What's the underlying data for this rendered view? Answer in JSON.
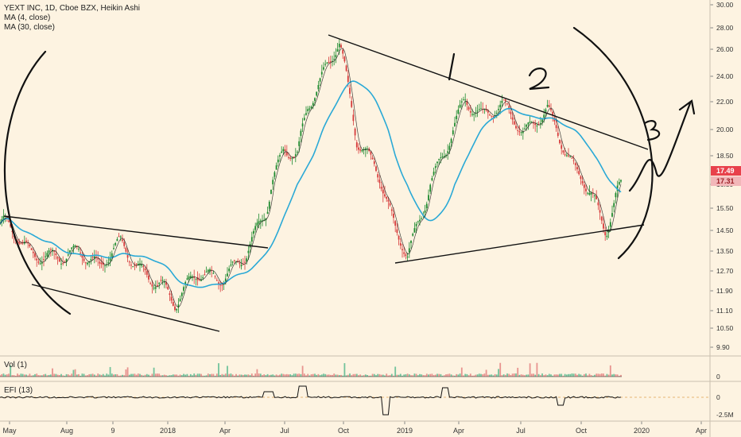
{
  "header": {
    "title": "YEXT INC, 1D, Cboe BZX, Heikin Ashi",
    "ma1": "MA (4, close)",
    "ma2": "MA (30, close)"
  },
  "panes": {
    "volume_label": "Vol (1)",
    "efi_label": "EFI (13)"
  },
  "colors": {
    "background": "#fdf3e1",
    "bull": "#1e8a2e",
    "bear": "#d63b3b",
    "ma_fast": "#111111",
    "ma_slow": "#2aa9d6",
    "price_tag": "#e8414b"
  },
  "chart_data": {
    "type": "candlestick",
    "style": "Heikin Ashi",
    "ylim": [
      9.9,
      30.0
    ],
    "y_ticks": [
      "30.00",
      "28.00",
      "26.00",
      "24.00",
      "22.00",
      "20.00",
      "18.50",
      "16.50",
      "15.50",
      "14.50",
      "13.50",
      "12.70",
      "11.90",
      "11.10",
      "10.50",
      "9.90"
    ],
    "x_ticks": [
      "May",
      "Aug",
      "9",
      "2018",
      "Apr",
      "Jul",
      "Oct",
      "2019",
      "Apr",
      "Jul",
      "Oct",
      "2020",
      "Apr"
    ],
    "price_tags": [
      "17.49",
      "17.31"
    ],
    "volume_ticks": [
      "0"
    ],
    "efi_ticks": [
      "0",
      "-2.5M"
    ],
    "annotations": [
      "1",
      "2",
      "3"
    ],
    "price_path": [
      {
        "x": "2017-05-01",
        "y": 14.8
      },
      {
        "x": "2017-06-10",
        "y": 13.2
      },
      {
        "x": "2017-07-20",
        "y": 13.5
      },
      {
        "x": "2017-08-20",
        "y": 13.6
      },
      {
        "x": "2017-09-20",
        "y": 12.6
      },
      {
        "x": "2017-10-20",
        "y": 13.9
      },
      {
        "x": "2017-11-20",
        "y": 12.9
      },
      {
        "x": "2017-12-20",
        "y": 12.2
      },
      {
        "x": "2018-01-10",
        "y": 11.2
      },
      {
        "x": "2018-02-10",
        "y": 12.5
      },
      {
        "x": "2018-03-20",
        "y": 12.6
      },
      {
        "x": "2018-04-25",
        "y": 13.4
      },
      {
        "x": "2018-05-25",
        "y": 15.2
      },
      {
        "x": "2018-06-20",
        "y": 18.9
      },
      {
        "x": "2018-07-10",
        "y": 18.7
      },
      {
        "x": "2018-07-25",
        "y": 22.0
      },
      {
        "x": "2018-08-15",
        "y": 24.0
      },
      {
        "x": "2018-09-10",
        "y": 26.4
      },
      {
        "x": "2018-10-05",
        "y": 19.2
      },
      {
        "x": "2018-11-01",
        "y": 18.0
      },
      {
        "x": "2018-12-01",
        "y": 14.8
      },
      {
        "x": "2018-12-20",
        "y": 13.4
      },
      {
        "x": "2019-01-10",
        "y": 15.0
      },
      {
        "x": "2019-02-15",
        "y": 18.8
      },
      {
        "x": "2019-03-15",
        "y": 22.5
      },
      {
        "x": "2019-04-10",
        "y": 21.2
      },
      {
        "x": "2019-05-10",
        "y": 21.5
      },
      {
        "x": "2019-06-10",
        "y": 19.5
      },
      {
        "x": "2019-07-15",
        "y": 21.8
      },
      {
        "x": "2019-08-05",
        "y": 19.6
      },
      {
        "x": "2019-08-25",
        "y": 17.5
      },
      {
        "x": "2019-09-15",
        "y": 16.0
      },
      {
        "x": "2019-10-10",
        "y": 14.3
      },
      {
        "x": "2019-10-25",
        "y": 16.0
      },
      {
        "x": "2019-11-10",
        "y": 17.4
      }
    ],
    "ma_fast_shown": true,
    "ma_slow_shown": true,
    "grid": false
  }
}
